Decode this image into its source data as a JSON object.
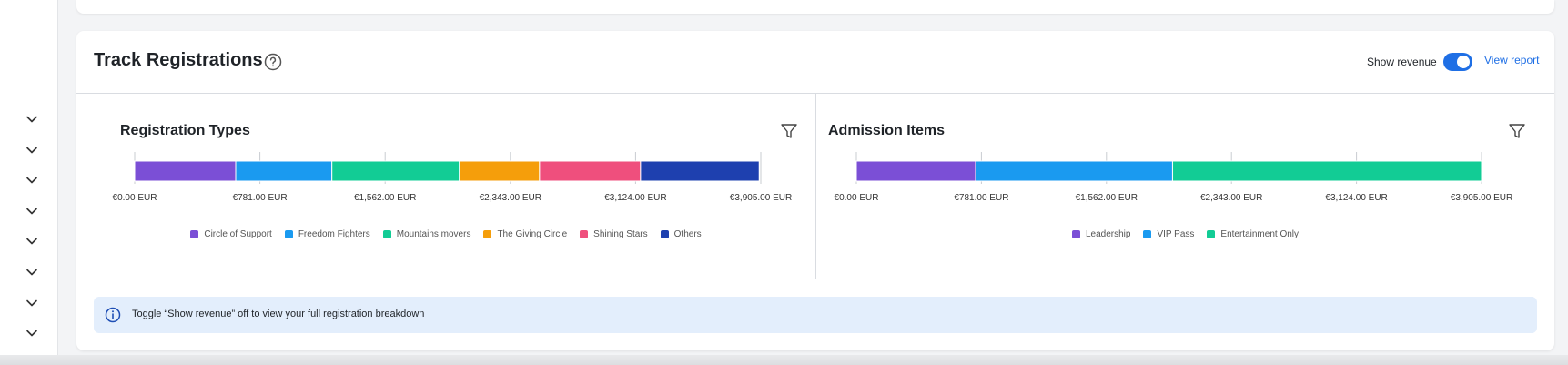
{
  "header": {
    "title": "Track Registrations",
    "show_revenue_label": "Show revenue",
    "show_revenue_on": true,
    "view_report_label": "View report"
  },
  "colors": {
    "accent": "#1f6fe5",
    "info_bg": "#e3eefc"
  },
  "sidebar": {
    "items": [
      {
        "icon": "chevron-down-icon"
      },
      {
        "icon": "chevron-down-icon"
      },
      {
        "icon": "chevron-down-icon"
      },
      {
        "icon": "chevron-down-icon"
      },
      {
        "icon": "chevron-down-icon"
      },
      {
        "icon": "chevron-down-icon"
      },
      {
        "icon": "chevron-down-icon"
      },
      {
        "icon": "chevron-down-icon"
      }
    ]
  },
  "info": {
    "text": "Toggle “Show revenue” off to view your full registration breakdown"
  },
  "chart_data": [
    {
      "type": "bar",
      "orientation": "horizontal-stacked",
      "title": "Registration Types",
      "xlim": [
        0,
        3905
      ],
      "ticks": [
        "€0.00 EUR",
        "€781.00 EUR",
        "€1,562.00 EUR",
        "€2,343.00 EUR",
        "€3,124.00 EUR",
        "€3,905.00 EUR"
      ],
      "tick_values": [
        0,
        781,
        1562,
        2343,
        3124,
        3905
      ],
      "series": [
        {
          "name": "Circle of Support",
          "value": 630,
          "color": "#7b4fd6"
        },
        {
          "name": "Freedom Fighters",
          "value": 600,
          "color": "#1a9af0"
        },
        {
          "name": "Mountains movers",
          "value": 795,
          "color": "#12cc95"
        },
        {
          "name": "The Giving Circle",
          "value": 500,
          "color": "#f59e0b"
        },
        {
          "name": "Shining Stars",
          "value": 630,
          "color": "#ef4f7d"
        },
        {
          "name": "Others",
          "value": 740,
          "color": "#1e40af"
        }
      ]
    },
    {
      "type": "bar",
      "orientation": "horizontal-stacked",
      "title": "Admission Items",
      "xlim": [
        0,
        3905
      ],
      "ticks": [
        "€0.00 EUR",
        "€781.00 EUR",
        "€1,562.00 EUR",
        "€2,343.00 EUR",
        "€3,124.00 EUR",
        "€3,905.00 EUR"
      ],
      "tick_values": [
        0,
        781,
        1562,
        2343,
        3124,
        3905
      ],
      "series": [
        {
          "name": "Leadership",
          "value": 745,
          "color": "#7b4fd6"
        },
        {
          "name": "VIP Pass",
          "value": 1230,
          "color": "#1a9af0"
        },
        {
          "name": "Entertainment Only",
          "value": 1930,
          "color": "#12cc95"
        }
      ]
    }
  ]
}
